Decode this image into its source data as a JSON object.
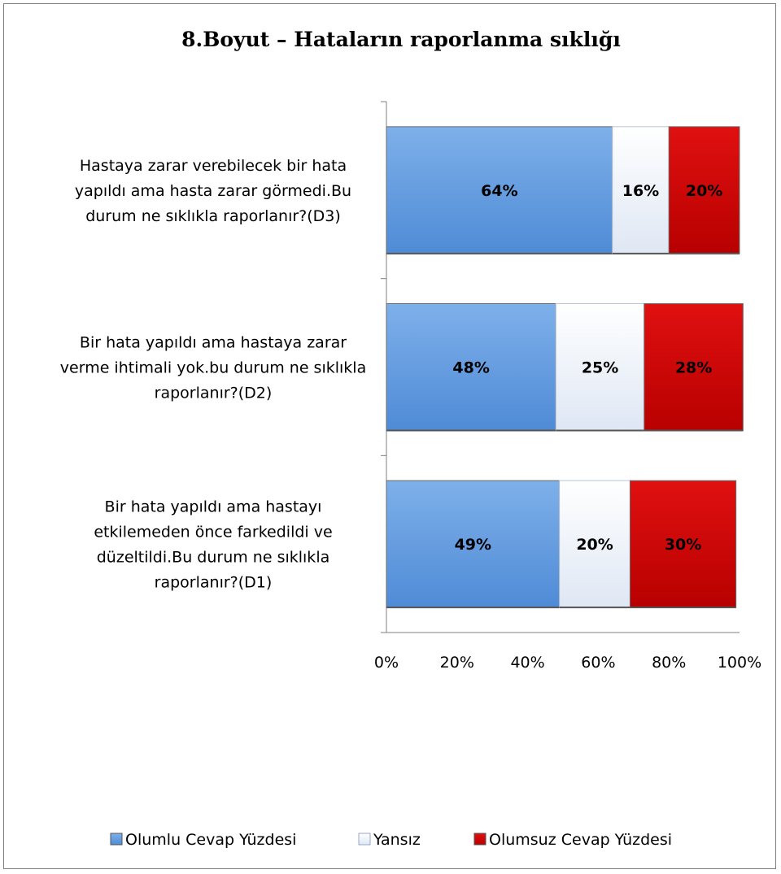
{
  "chart_data": {
    "type": "bar",
    "orientation": "horizontal",
    "stacked": "percent",
    "title": "8.Boyut – Hataların raporlanma sıklığı",
    "categories": [
      "Hastaya zarar verebilecek bir hata yapıldı ama hasta zarar görmedi.Bu durum ne sıklıkla raporlanır?(D3)",
      "Bir hata yapıldı ama hastaya zarar verme ihtimali yok.bu durum ne sıklıkla raporlanır?(D2)",
      "Bir hata yapıldı ama hastayı etkilemeden önce farkedildi ve düzeltildi.Bu durum ne sıklıkla raporlanır?(D1)"
    ],
    "category_lines": [
      [
        "Hastaya zarar verebilecek bir hata",
        "yapıldı ama hasta zarar görmedi.Bu",
        "durum ne sıklıkla raporlanır?(D3)"
      ],
      [
        "Bir hata yapıldı ama hastaya zarar",
        "verme ihtimali yok.bu durum ne sıklıkla",
        "raporlanır?(D2)"
      ],
      [
        "Bir hata yapıldı ama hastayı",
        "etkilemeden önce farkedildi ve",
        "düzeltildi.Bu durum ne sıklıkla",
        "raporlanır?(D1)"
      ]
    ],
    "series": [
      {
        "name": "Olumlu Cevap Yüzdesi",
        "values": [
          64,
          48,
          49
        ],
        "labels": [
          "64%",
          "48%",
          "49%"
        ],
        "color": "#5b97de"
      },
      {
        "name": "Yansız",
        "values": [
          16,
          25,
          20
        ],
        "labels": [
          "16%",
          "25%",
          "20%"
        ],
        "color": "#e8eef8"
      },
      {
        "name": "Olumsuz Cevap Yüzdesi",
        "values": [
          20,
          28,
          30
        ],
        "labels": [
          "20%",
          "28%",
          "30%"
        ],
        "color": "#cc0000"
      }
    ],
    "xlim": [
      0,
      100
    ],
    "xticks": [
      "0%",
      "20%",
      "40%",
      "60%",
      "80%",
      "100%"
    ],
    "xlabel": "",
    "ylabel": "",
    "grid": false,
    "legend": "bottom"
  }
}
